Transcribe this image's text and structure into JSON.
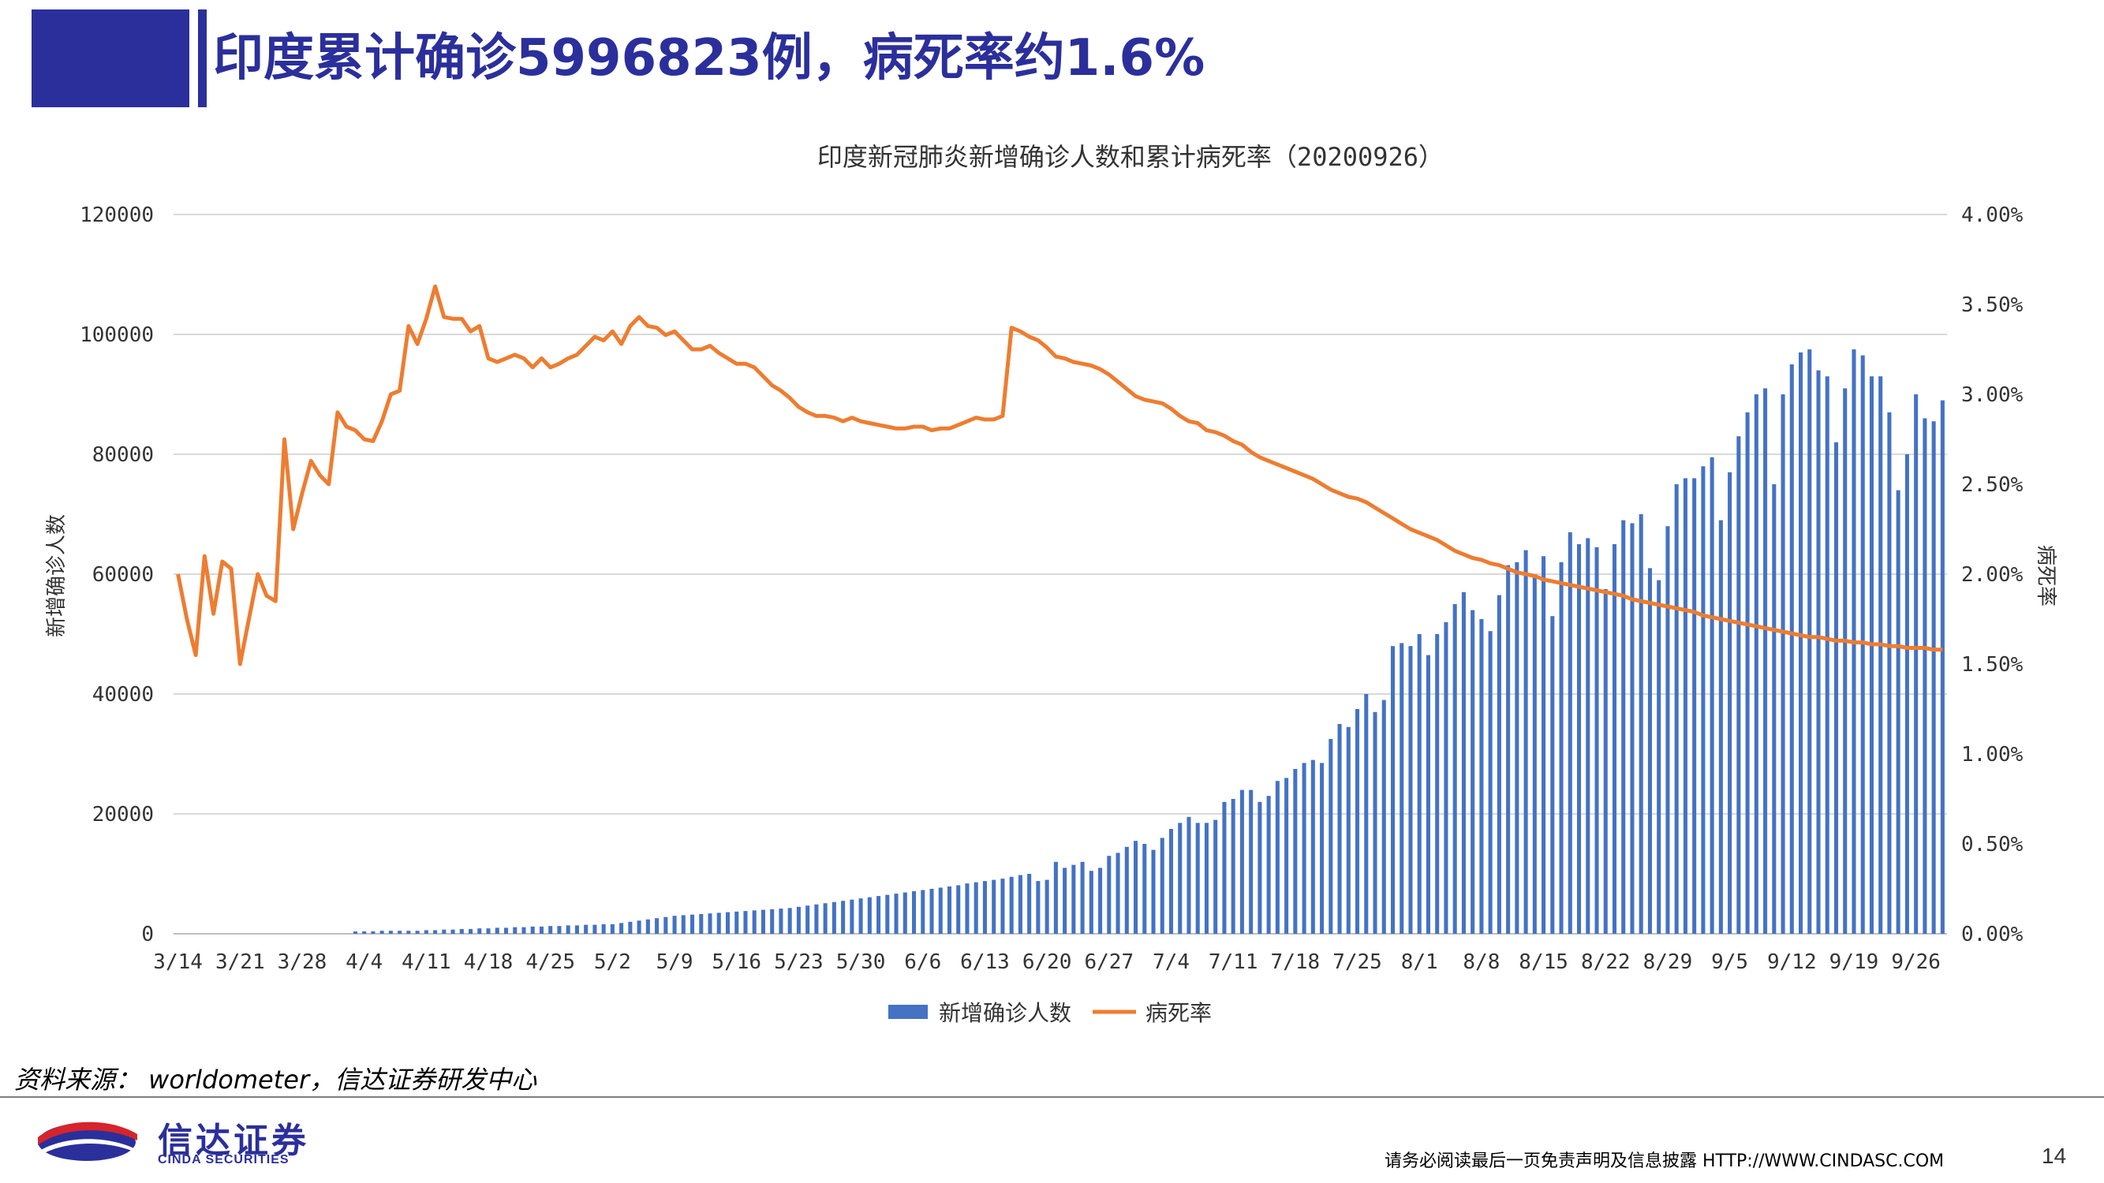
{
  "header": {
    "title": "印度累计确诊5996823例，病死率约1.6%"
  },
  "source_note": "资料来源： worldometer，信达证券研发中心",
  "footer": {
    "brand_cn": "信达证券",
    "brand_en": "CINDA SECURITIES",
    "disclaimer": "请务必阅读最后一页免责声明及信息披露   HTTP://WWW.CINDASC.COM",
    "page_number": "14"
  },
  "colors": {
    "bar": "#4472c4",
    "line": "#ed7d31",
    "brand": "#2b2f9b",
    "grid": "#d9d9d9"
  },
  "chart_data": {
    "type": "bar",
    "title": "印度新冠肺炎新增确诊人数和累计病死率（20200926）",
    "ylabel": "新增确诊人数",
    "y2label": "病死率",
    "x_start": "3/14",
    "x_end": "9/26",
    "xticks": [
      "3/14",
      "3/21",
      "3/28",
      "4/4",
      "4/11",
      "4/18",
      "4/25",
      "5/2",
      "5/9",
      "5/16",
      "5/23",
      "5/30",
      "6/6",
      "6/13",
      "6/20",
      "6/27",
      "7/4",
      "7/11",
      "7/18",
      "7/25",
      "8/1",
      "8/8",
      "8/15",
      "8/22",
      "8/29",
      "9/5",
      "9/12",
      "9/19",
      "9/26"
    ],
    "ylim": [
      0,
      120000
    ],
    "yticks": [
      "0",
      "20000",
      "40000",
      "60000",
      "80000",
      "100000",
      "120000"
    ],
    "y2lim": [
      0,
      4.0
    ],
    "y2ticks": [
      "0.00%",
      "0.50%",
      "1.00%",
      "1.50%",
      "2.00%",
      "2.50%",
      "3.00%",
      "3.50%",
      "4.00%"
    ],
    "legend": [
      "新增确诊人数",
      "病死率"
    ],
    "legend_position": "bottom",
    "grid": true,
    "series": [
      {
        "name": "新增确诊人数",
        "type": "bar",
        "values": [
          0,
          0,
          0,
          0,
          0,
          0,
          0,
          0,
          0,
          0,
          0,
          0,
          0,
          0,
          0,
          0,
          0,
          0,
          0,
          0,
          400,
          400,
          400,
          500,
          500,
          500,
          500,
          500,
          600,
          600,
          700,
          700,
          800,
          800,
          900,
          900,
          1000,
          1000,
          1100,
          1100,
          1200,
          1200,
          1300,
          1300,
          1400,
          1400,
          1500,
          1500,
          1600,
          1600,
          1800,
          2000,
          2200,
          2400,
          2600,
          2800,
          3000,
          3100,
          3200,
          3300,
          3400,
          3500,
          3600,
          3700,
          3800,
          3900,
          4000,
          4100,
          4200,
          4300,
          4500,
          4700,
          4900,
          5100,
          5300,
          5500,
          5700,
          5900,
          6100,
          6300,
          6500,
          6700,
          6900,
          7100,
          7300,
          7500,
          7700,
          7900,
          8100,
          8400,
          8600,
          8800,
          9000,
          9200,
          9500,
          9800,
          10000,
          8800,
          9000,
          12000,
          11000,
          11500,
          12000,
          10500,
          11000,
          13000,
          13500,
          14500,
          15500,
          15000,
          14000,
          16000,
          17500,
          18500,
          19500,
          18500,
          18500,
          19000,
          22000,
          22500,
          24000,
          24000,
          22000,
          23000,
          25500,
          26000,
          27500,
          28500,
          29000,
          28500,
          32500,
          35000,
          34500,
          37500,
          40000,
          37000,
          39000,
          48000,
          48500,
          48000,
          50000,
          46500,
          50000,
          52000,
          55000,
          57000,
          54000,
          52500,
          50500,
          56500,
          61500,
          62000,
          64000,
          60000,
          63000,
          53000,
          62000,
          67000,
          65000,
          66000,
          64500,
          57500,
          65000,
          69000,
          68500,
          70000,
          61000,
          59000,
          68000,
          75000,
          76000,
          76000,
          78000,
          79500,
          69000,
          77000,
          83000,
          87000,
          90000,
          91000,
          75000,
          90000,
          95000,
          97000,
          97500,
          94000,
          93000,
          82000,
          91000,
          97500,
          96500,
          93000,
          93000,
          87000,
          74000,
          80000,
          90000,
          86000,
          85500,
          89000
        ]
      },
      {
        "name": "病死率",
        "type": "line",
        "axis": "right",
        "unit": "%",
        "values": [
          2.0,
          1.75,
          1.55,
          2.1,
          1.78,
          2.07,
          2.03,
          1.5,
          1.75,
          2.0,
          1.88,
          1.85,
          2.75,
          2.25,
          2.45,
          2.63,
          2.55,
          2.5,
          2.9,
          2.82,
          2.8,
          2.75,
          2.74,
          2.85,
          3.0,
          3.02,
          3.38,
          3.28,
          3.42,
          3.6,
          3.43,
          3.42,
          3.42,
          3.35,
          3.38,
          3.2,
          3.18,
          3.2,
          3.22,
          3.2,
          3.15,
          3.2,
          3.15,
          3.17,
          3.2,
          3.22,
          3.27,
          3.32,
          3.3,
          3.35,
          3.28,
          3.38,
          3.43,
          3.38,
          3.37,
          3.33,
          3.35,
          3.3,
          3.25,
          3.25,
          3.27,
          3.23,
          3.2,
          3.17,
          3.17,
          3.15,
          3.1,
          3.05,
          3.02,
          2.98,
          2.93,
          2.9,
          2.88,
          2.88,
          2.87,
          2.85,
          2.87,
          2.85,
          2.84,
          2.83,
          2.82,
          2.81,
          2.81,
          2.82,
          2.82,
          2.8,
          2.81,
          2.81,
          2.83,
          2.85,
          2.87,
          2.86,
          2.86,
          2.88,
          3.37,
          3.35,
          3.32,
          3.3,
          3.26,
          3.21,
          3.2,
          3.18,
          3.17,
          3.16,
          3.14,
          3.11,
          3.07,
          3.03,
          2.99,
          2.97,
          2.96,
          2.95,
          2.92,
          2.88,
          2.85,
          2.84,
          2.8,
          2.79,
          2.77,
          2.74,
          2.72,
          2.68,
          2.65,
          2.63,
          2.61,
          2.59,
          2.57,
          2.55,
          2.53,
          2.5,
          2.47,
          2.45,
          2.43,
          2.42,
          2.4,
          2.37,
          2.34,
          2.31,
          2.28,
          2.25,
          2.23,
          2.21,
          2.19,
          2.16,
          2.13,
          2.11,
          2.09,
          2.08,
          2.06,
          2.05,
          2.03,
          2.01,
          2.0,
          1.99,
          1.97,
          1.96,
          1.95,
          1.94,
          1.93,
          1.92,
          1.91,
          1.9,
          1.89,
          1.88,
          1.86,
          1.85,
          1.84,
          1.83,
          1.82,
          1.81,
          1.8,
          1.79,
          1.77,
          1.76,
          1.75,
          1.74,
          1.73,
          1.72,
          1.71,
          1.7,
          1.69,
          1.68,
          1.67,
          1.66,
          1.65,
          1.65,
          1.64,
          1.63,
          1.63,
          1.62,
          1.62,
          1.61,
          1.61,
          1.6,
          1.6,
          1.59,
          1.59,
          1.59,
          1.58,
          1.58
        ]
      }
    ]
  }
}
